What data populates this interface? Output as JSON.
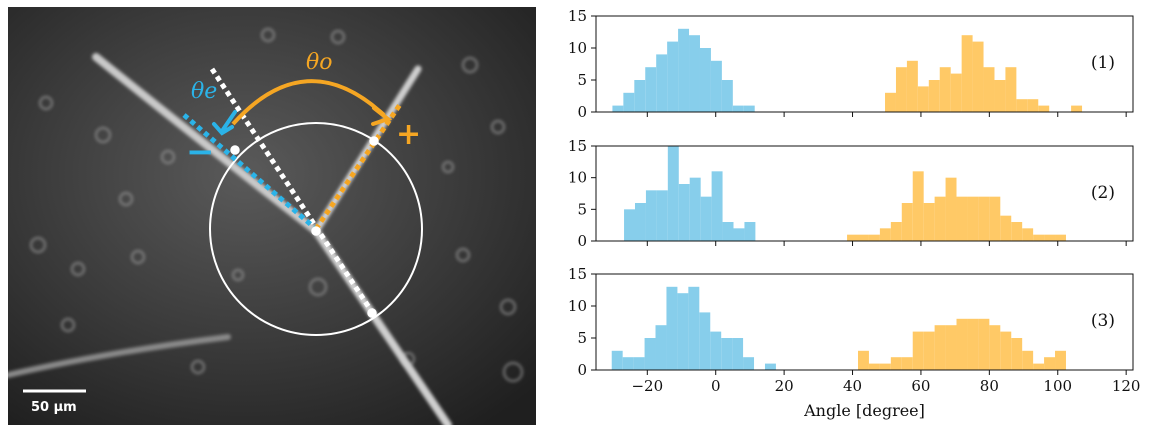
{
  "image": {
    "scale_bar": "50 μm",
    "theta_e": "θe",
    "theta_o": "θo",
    "minus": "−",
    "plus": "+",
    "colors": {
      "electrode_minus": "#2bb3e8",
      "electrode_plus": "#f5a623",
      "guide_line": "#ffffff"
    }
  },
  "chart_data": [
    {
      "type": "bar",
      "panel_label": "(1)",
      "xlim": [
        -35,
        122
      ],
      "ylim": [
        0,
        15
      ],
      "yticks": [
        0,
        5,
        10,
        15
      ],
      "xticks": [
        -20,
        0,
        20,
        40,
        60,
        80,
        100,
        120
      ],
      "bin_width": 3.2,
      "series": [
        {
          "color": "#87ceeb",
          "bin_starts": [
            -30.2,
            -27,
            -23.8,
            -20.6,
            -17.4,
            -14.2,
            -11,
            -7.8,
            -4.6,
            -1.4,
            1.8,
            5,
            8.2,
            11.4
          ],
          "values": [
            1,
            3,
            5,
            7,
            9,
            11,
            13,
            12,
            10,
            8,
            5,
            1,
            1,
            0
          ]
        },
        {
          "color": "#ffc966",
          "bin_starts": [
            49.5,
            52.7,
            55.9,
            59.1,
            62.3,
            65.5,
            68.7,
            71.9,
            75.1,
            78.3,
            81.5,
            84.7,
            87.9,
            91.1,
            94.3,
            97.5,
            100.7,
            103.9
          ],
          "values": [
            3,
            7,
            8,
            4,
            5,
            7,
            6,
            12,
            11,
            7,
            5,
            7,
            2,
            2,
            1,
            0,
            0,
            1
          ]
        }
      ]
    },
    {
      "type": "bar",
      "panel_label": "(2)",
      "xlim": [
        -35,
        122
      ],
      "ylim": [
        0,
        15
      ],
      "yticks": [
        0,
        5,
        10,
        15
      ],
      "xticks": [
        -20,
        0,
        20,
        40,
        60,
        80,
        100,
        120
      ],
      "bin_width": 3.2,
      "series": [
        {
          "color": "#87ceeb",
          "bin_starts": [
            -26.8,
            -23.6,
            -20.4,
            -17.2,
            -14,
            -10.8,
            -7.6,
            -4.4,
            -1.2,
            2,
            5.2,
            8.4
          ],
          "values": [
            5,
            6,
            8,
            8,
            15,
            9,
            10,
            7,
            11,
            3,
            2,
            3
          ]
        },
        {
          "color": "#ffc966",
          "bin_starts": [
            38.4,
            41.6,
            44.8,
            48,
            51.2,
            54.4,
            57.6,
            60.8,
            64,
            67.2,
            70.4,
            73.6,
            76.8,
            80,
            83.2,
            86.4,
            89.6,
            92.8,
            96,
            99.2
          ],
          "values": [
            1,
            1,
            1,
            2,
            3,
            6,
            11,
            6,
            7,
            10,
            7,
            7,
            7,
            7,
            4,
            3,
            2,
            1,
            1,
            1
          ]
        }
      ]
    },
    {
      "type": "bar",
      "panel_label": "(3)",
      "xlim": [
        -35,
        122
      ],
      "ylim": [
        0,
        15
      ],
      "yticks": [
        0,
        5,
        10,
        15
      ],
      "xticks": [
        -20,
        0,
        20,
        40,
        60,
        80,
        100,
        120
      ],
      "xlabel": "Angle [degree]",
      "bin_width": 3.2,
      "series": [
        {
          "color": "#87ceeb",
          "bin_starts": [
            -30.4,
            -27.2,
            -24,
            -20.8,
            -17.6,
            -14.4,
            -11.2,
            -8,
            -4.8,
            -1.6,
            1.6,
            4.8,
            8,
            11.2,
            14.4
          ],
          "values": [
            3,
            2,
            2,
            5,
            7,
            13,
            12,
            13,
            9,
            6,
            5,
            5,
            2,
            0,
            1
          ]
        },
        {
          "color": "#ffc966",
          "bin_starts": [
            41.6,
            44.8,
            48,
            51.2,
            54.4,
            57.6,
            60.8,
            64,
            67.2,
            70.4,
            73.6,
            76.8,
            80,
            83.2,
            86.4,
            89.6,
            92.8,
            96,
            99.2
          ],
          "values": [
            3,
            1,
            1,
            2,
            2,
            6,
            6,
            7,
            7,
            8,
            8,
            8,
            7,
            6,
            5,
            3,
            1,
            2,
            3
          ]
        }
      ]
    }
  ]
}
